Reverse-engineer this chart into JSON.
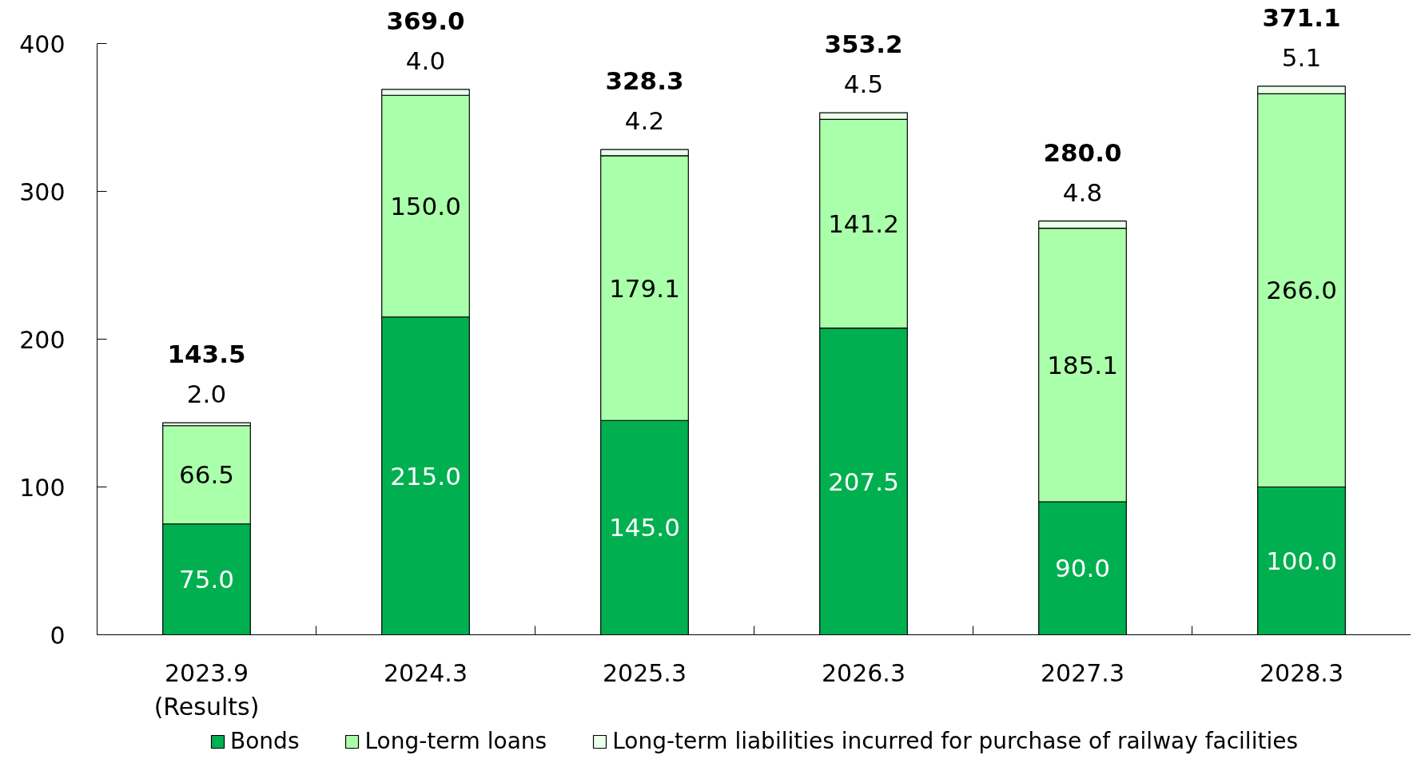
{
  "chart_data": {
    "type": "bar",
    "stacked": true,
    "categories": [
      "2023.9\n(Results)",
      "2024.3",
      "2025.3",
      "2026.3",
      "2027.3",
      "2028.3"
    ],
    "series": [
      {
        "name": "Bonds",
        "color": "#00b050",
        "values": [
          75.0,
          215.0,
          145.0,
          207.5,
          90.0,
          100.0
        ],
        "value_labels": [
          "75.0",
          "215.0",
          "145.0",
          "207.5",
          "90.0",
          "100.0"
        ]
      },
      {
        "name": "Long-term loans",
        "color": "#aaffaa",
        "values": [
          66.5,
          150.0,
          179.1,
          141.2,
          185.1,
          266.0
        ],
        "value_labels": [
          "66.5",
          "150.0",
          "179.1",
          "141.2",
          "185.1",
          "266.0"
        ]
      },
      {
        "name": "Long-term liabilities incurred for purchase of railway facilities",
        "color": "#eaffea",
        "values": [
          2.0,
          4.0,
          4.2,
          4.5,
          4.8,
          5.1
        ],
        "value_labels": [
          "2.0",
          "4.0",
          "4.2",
          "4.5",
          "4.8",
          "5.1"
        ]
      }
    ],
    "totals": [
      "143.5",
      "369.0",
      "328.3",
      "353.2",
      "280.0",
      "371.1"
    ],
    "ylim": [
      0,
      400
    ],
    "yticks": [
      0,
      100,
      200,
      300,
      400
    ],
    "grid": false,
    "legend": "bottom"
  }
}
